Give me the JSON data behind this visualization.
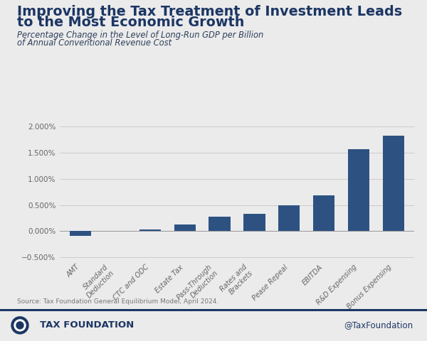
{
  "title_line1": "Improving the Tax Treatment of Investment Leads",
  "title_line2": "to the Most Economic Growth",
  "subtitle_line1": "Percentage Change in the Level of Long-Run GDP per Billion",
  "subtitle_line2": "of Annual Conventional Revenue Cost",
  "categories": [
    "AMT",
    "Standard\nDeduction",
    "CTC and ODC",
    "Estate Tax",
    "Pass-Through\nDeduction",
    "Rates and\nBrackets",
    "Pease Repeal",
    "EBITDA",
    "R&D Expensing",
    "Bonus Expensing"
  ],
  "values": [
    -0.00085,
    5e-05,
    0.00035,
    0.00125,
    0.00275,
    0.00325,
    0.00495,
    0.0068,
    0.0157,
    0.0182
  ],
  "bar_color": "#2d5282",
  "background_color": "#ebebeb",
  "plot_bg_color": "#ebebeb",
  "ylim": [
    -0.006,
    0.022
  ],
  "yticks": [
    -0.005,
    0.0,
    0.005,
    0.01,
    0.015,
    0.02
  ],
  "source_text": "Source: Tax Foundation General Equilibrium Model, April 2024.",
  "footer_left": "TAX FOUNDATION",
  "footer_right": "@TaxFoundation",
  "footer_line_color": "#1c3664",
  "title_color": "#1c3664",
  "subtitle_color": "#2d3f5a",
  "tick_label_color": "#666666",
  "grid_color": "#cccccc"
}
